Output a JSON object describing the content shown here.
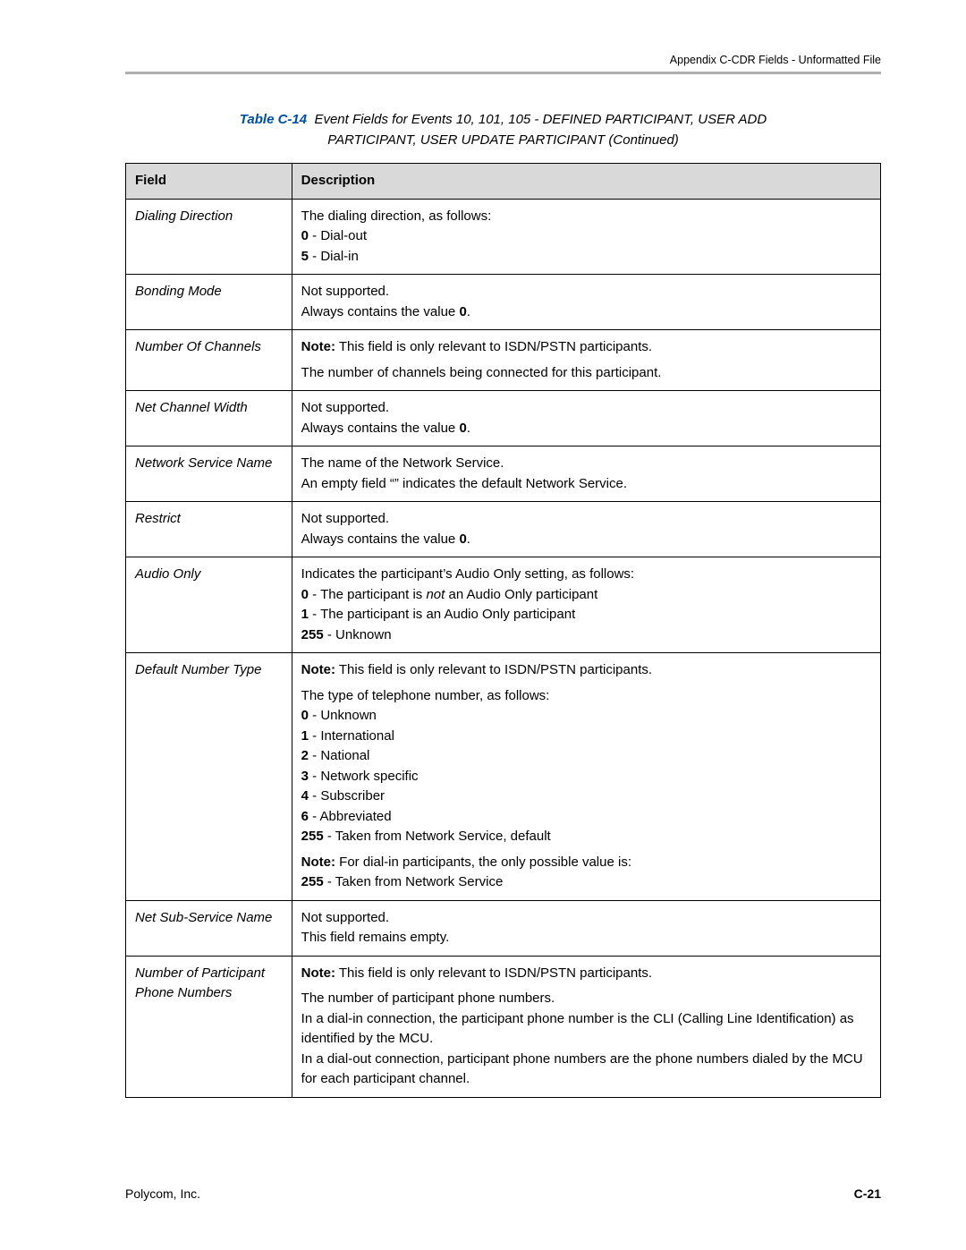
{
  "header": {
    "right_text": "Appendix C-CDR Fields - Unformatted File"
  },
  "caption": {
    "table_ref": "Table C-14",
    "title_line1": "Event Fields for Events 10, 101, 105 - DEFINED PARTICIPANT, USER ADD",
    "title_line2": "PARTICIPANT, USER UPDATE PARTICIPANT (Continued)"
  },
  "columns": {
    "field": "Field",
    "description": "Description"
  },
  "rows": [
    {
      "field": "Dialing Direction",
      "desc_html": "The dialing direction, as follows:<br><span class=\"b\">0</span> - Dial-out<br><span class=\"b\">5</span> - Dial-in"
    },
    {
      "field": "Bonding Mode",
      "desc_html": "Not supported.<br>Always contains the value <span class=\"b\">0</span>."
    },
    {
      "field": "Number Of Channels",
      "desc_html": "<p><span class=\"b\">Note:</span> This field is only relevant to ISDN/PSTN participants.</p><p>The number of channels being connected for this participant.</p>"
    },
    {
      "field": "Net Channel Width",
      "desc_html": "Not supported.<br>Always contains the value <span class=\"b\">0</span>."
    },
    {
      "field": "Network Service Name",
      "desc_html": "The name of the Network Service.<br>An empty field “” indicates the default Network Service."
    },
    {
      "field": "Restrict",
      "desc_html": "Not supported.<br>Always contains the value <span class=\"b\">0</span>."
    },
    {
      "field": "Audio Only",
      "desc_html": "Indicates the participant’s Audio Only setting, as follows:<br><span class=\"b\">0</span> - The participant is <span class=\"i\">not</span> an Audio Only participant<br><span class=\"b\">1</span> - The participant is an Audio Only participant<br><span class=\"b\">255</span> - Unknown"
    },
    {
      "field": "Default Number Type",
      "desc_html": "<p><span class=\"b\">Note:</span> This field is only relevant to ISDN/PSTN participants.</p><p>The type of telephone number, as follows:<br><span class=\"b\">0</span> - Unknown<br><span class=\"b\">1</span> - International<br><span class=\"b\">2</span> - National<br><span class=\"b\">3</span> - Network specific<br><span class=\"b\">4</span> - Subscriber<br><span class=\"b\">6</span> - Abbreviated<br><span class=\"b\">255</span> - Taken from Network Service, default</p><p><span class=\"b\">Note:</span> For dial-in participants, the only possible value is:<br><span class=\"b\">255</span> - Taken from Network Service</p>"
    },
    {
      "field": "Net Sub-Service Name",
      "desc_html": "Not supported.<br>This field remains empty."
    },
    {
      "field": "Number of Participant Phone Numbers",
      "desc_html": "<p><span class=\"b\">Note:</span> This field is only relevant to ISDN/PSTN participants.</p><p>The number of participant phone numbers.<br>In a dial-in connection, the participant phone number is the CLI (Calling Line Identification) as identified by the MCU.<br>In a dial-out connection, participant phone numbers are the phone numbers dialed by the MCU for each participant channel.</p>"
    }
  ],
  "footer": {
    "left": "Polycom, Inc.",
    "right": "C-21"
  }
}
